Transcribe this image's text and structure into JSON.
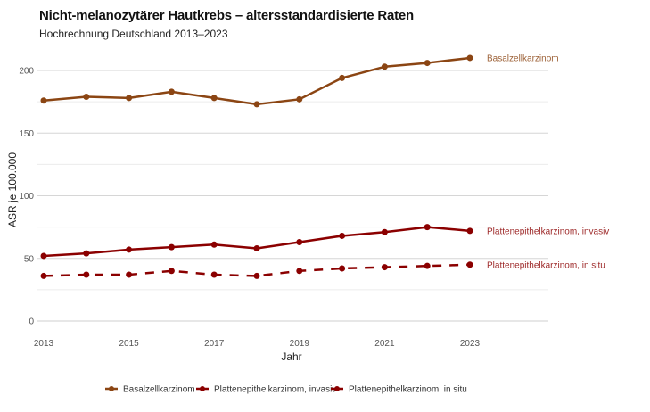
{
  "chart_data": {
    "type": "line",
    "title": "Nicht-melanozytärer Hautkrebs – altersstandardisierte Raten",
    "subtitle": "Hochrechnung Deutschland 2013–2023",
    "xlabel": "Jahr",
    "ylabel": "ASR je 100.000",
    "x": [
      2013,
      2014,
      2015,
      2016,
      2017,
      2018,
      2019,
      2020,
      2021,
      2022,
      2023
    ],
    "xlim": [
      2013,
      2025
    ],
    "ylim": [
      0,
      225
    ],
    "x_ticks": [
      "2013",
      "2015",
      "2017",
      "2019",
      "2021",
      "2023"
    ],
    "y_ticks": [
      "0",
      "50",
      "100",
      "150",
      "200"
    ],
    "y_tick_values": [
      0,
      50,
      100,
      150,
      200
    ],
    "y_minor_gridlines": [
      25,
      75,
      125,
      175
    ],
    "grid": true,
    "legend_position": "bottom",
    "series": [
      {
        "name": "Basalzellkarzinom",
        "color": "#8B4513",
        "dash": "solid",
        "end_label": "Basalzellkarzinom",
        "values": [
          176,
          179,
          178,
          183,
          178,
          173,
          177,
          194,
          203,
          206,
          210
        ]
      },
      {
        "name": "Plattenepithelkarzinom, invasiv",
        "color": "#8B0000",
        "dash": "solid",
        "end_label": "Plattenepithelkarzinom, invasiv",
        "values": [
          52,
          54,
          57,
          59,
          61,
          58,
          63,
          68,
          71,
          75,
          72
        ]
      },
      {
        "name": "Plattenepithelkarzinom, in situ",
        "color": "#8B0000",
        "dash": "dashed",
        "end_label": "Plattenepithelkarzinom, in situ",
        "values": [
          36,
          37,
          37,
          40,
          37,
          36,
          40,
          42,
          43,
          44,
          45
        ]
      }
    ]
  }
}
